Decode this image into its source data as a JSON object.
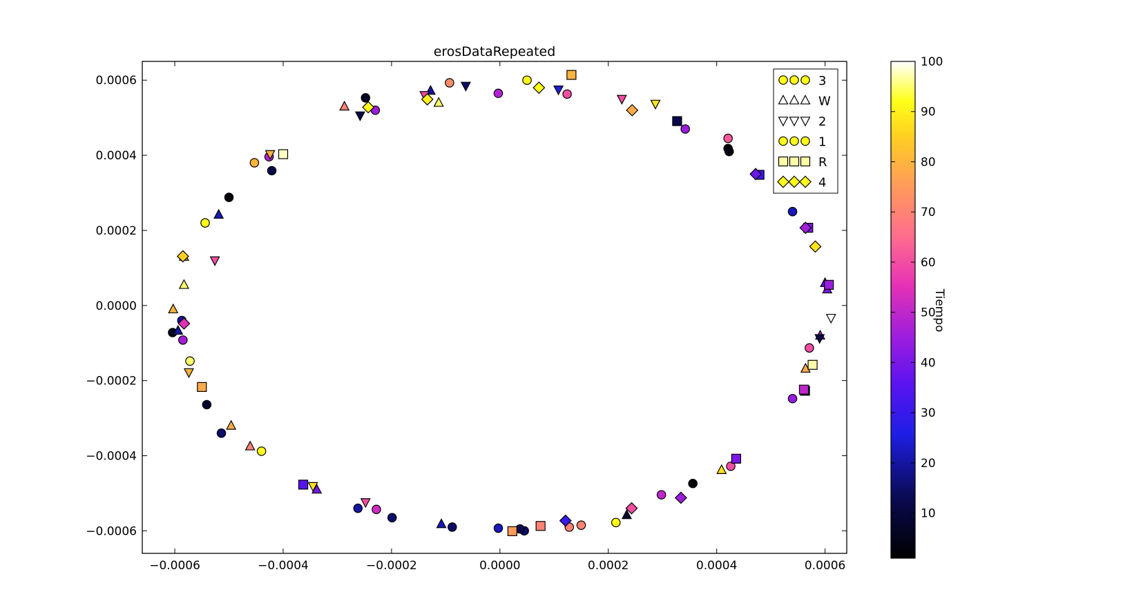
{
  "chart_data": {
    "type": "scatter",
    "title": "erosDataRepeated",
    "xlim": [
      -0.00066,
      0.00064
    ],
    "ylim": [
      -0.00066,
      0.00065
    ],
    "xticks": [
      -0.0006,
      -0.0004,
      -0.0002,
      0.0,
      0.0002,
      0.0004,
      0.0006
    ],
    "xtick_labels": [
      "−0.0006",
      "−0.0004",
      "−0.0002",
      "0.0000",
      "0.0002",
      "0.0004",
      "0.0006"
    ],
    "yticks": [
      -0.0006,
      -0.0004,
      -0.0002,
      0.0,
      0.0002,
      0.0004,
      0.0006
    ],
    "ytick_labels": [
      "−0.0006",
      "−0.0004",
      "−0.0002",
      "0.0000",
      "0.0002",
      "0.0004",
      "0.0006"
    ],
    "legend_position": "top-right",
    "colorbar": {
      "label": "Tiempo",
      "range": [
        1,
        100
      ],
      "ticks": [
        10,
        20,
        30,
        40,
        50,
        60,
        70,
        80,
        90,
        100
      ],
      "colormap": "gnuplot2"
    },
    "series": [
      {
        "name": "3",
        "marker": "circle",
        "points": [
          [
            -9.3e-05,
            0.000593,
            72
          ],
          [
            -3e-06,
            0.000565,
            48
          ],
          [
            0.000124,
            0.000563,
            60
          ],
          [
            0.000342,
            0.00047,
            45
          ],
          [
            0.000421,
            0.000418,
            2
          ],
          [
            0.000423,
            0.00041,
            3
          ],
          [
            0.00054,
            0.00025,
            22
          ],
          [
            0.000571,
            -0.000113,
            60
          ],
          [
            0.00054,
            -0.000248,
            44
          ],
          [
            0.000298,
            -0.000504,
            50
          ],
          [
            0.000356,
            -0.000474,
            2
          ],
          [
            0.00015,
            -0.000585,
            70
          ],
          [
            0.000128,
            -0.00059,
            70
          ],
          [
            4.5e-05,
            -0.0006,
            15
          ],
          [
            3.7e-05,
            -0.000595,
            13
          ],
          [
            -8.8e-05,
            -0.00059,
            15
          ],
          [
            -3e-06,
            -0.000593,
            22
          ],
          [
            -0.000199,
            -0.000565,
            15
          ],
          [
            -0.000228,
            -0.000543,
            52
          ],
          [
            -0.000262,
            -0.00054,
            20
          ],
          [
            -0.000514,
            -0.00034,
            15
          ],
          [
            -0.000541,
            -0.000264,
            8
          ],
          [
            -0.000585,
            -9.2e-05,
            46
          ],
          [
            -0.000604,
            -7.2e-05,
            5
          ],
          [
            -0.000587,
            -4e-05,
            20
          ],
          [
            -0.000421,
            0.000359,
            12
          ],
          [
            -0.000426,
            0.000396,
            48
          ],
          [
            -0.0005,
            0.000288,
            3
          ],
          [
            -0.000248,
            0.000553,
            6
          ],
          [
            -0.00023,
            0.00052,
            45
          ]
        ]
      },
      {
        "name": "W",
        "marker": "triangle-up",
        "points": [
          [
            -0.000287,
            0.00053,
            70
          ],
          [
            -0.000128,
            0.000572,
            20
          ],
          [
            -0.000113,
            0.00054,
            95
          ],
          [
            -0.000519,
            0.000242,
            22
          ],
          [
            -0.000583,
            0.00013,
            82
          ],
          [
            -0.000583,
            5.5e-05,
            95
          ],
          [
            -0.000603,
            -1e-05,
            80
          ],
          [
            -0.000594,
            -6.7e-05,
            20
          ],
          [
            -0.000496,
            -0.00032,
            78
          ],
          [
            -0.000461,
            -0.000375,
            70
          ],
          [
            -0.000338,
            -0.00049,
            40
          ],
          [
            -0.000108,
            -0.000582,
            22
          ],
          [
            0.000234,
            -0.000558,
            8
          ],
          [
            0.000409,
            -0.000438,
            88
          ],
          [
            0.0006,
            6e-05,
            35
          ],
          [
            0.000604,
            4.3e-05,
            40
          ],
          [
            0.000591,
            -8e-05,
            50
          ],
          [
            0.000564,
            -0.000168,
            78
          ]
        ]
      },
      {
        "name": "2",
        "marker": "triangle-down",
        "points": [
          [
            -0.000258,
            0.000506,
            12
          ],
          [
            -0.000139,
            0.00056,
            60
          ],
          [
            -6.3e-05,
            0.000585,
            15
          ],
          [
            0.000108,
            0.000575,
            25
          ],
          [
            0.000225,
            0.00055,
            60
          ],
          [
            0.000287,
            0.000537,
            88
          ],
          [
            -0.000424,
            0.000403,
            80
          ],
          [
            -0.000526,
            0.00012,
            60
          ],
          [
            -0.000574,
            -0.000178,
            80
          ],
          [
            -0.000345,
            -0.000481,
            88
          ],
          [
            -0.000248,
            -0.000524,
            60
          ],
          [
            0.000611,
            -3.3e-05,
            100
          ],
          [
            0.00059,
            -8.7e-05,
            12
          ]
        ]
      },
      {
        "name": "1",
        "marker": "circle",
        "points": [
          [
            5e-05,
            0.0006,
            92
          ],
          [
            0.000421,
            0.000445,
            62
          ],
          [
            -0.000453,
            0.00038,
            80
          ],
          [
            -0.000544,
            0.00022,
            92
          ],
          [
            -0.000572,
            -0.000148,
            95
          ],
          [
            -0.00044,
            -0.000388,
            92
          ],
          [
            0.000214,
            -0.000578,
            92
          ],
          [
            0.000426,
            -0.000428,
            60
          ]
        ]
      },
      {
        "name": "R",
        "marker": "square",
        "points": [
          [
            0.000132,
            0.000614,
            80
          ],
          [
            0.000327,
            0.000491,
            12
          ],
          [
            0.000479,
            0.000348,
            30
          ],
          [
            0.000569,
            0.000207,
            40
          ],
          [
            0.000607,
            5.5e-05,
            45
          ],
          [
            0.000577,
            -0.000158,
            97
          ],
          [
            0.000563,
            -0.000227,
            15
          ],
          [
            0.000561,
            -0.000224,
            50
          ],
          [
            0.000436,
            -0.000408,
            40
          ],
          [
            7.5e-05,
            -0.000587,
            70
          ],
          [
            2.3e-05,
            -0.000601,
            75
          ],
          [
            -0.000363,
            -0.000477,
            35
          ],
          [
            -0.00055,
            -0.000217,
            78
          ],
          [
            -0.0004,
            0.000403,
            98
          ]
        ]
      },
      {
        "name": "4",
        "marker": "diamond",
        "points": [
          [
            -0.000243,
            0.000528,
            92
          ],
          [
            -0.000134,
            0.000549,
            90
          ],
          [
            7.2e-05,
            0.00058,
            92
          ],
          [
            0.000244,
            0.00052,
            78
          ],
          [
            0.000472,
            0.00035,
            38
          ],
          [
            0.000564,
            0.000207,
            46
          ],
          [
            0.000582,
            0.000157,
            88
          ],
          [
            0.000334,
            -0.000512,
            45
          ],
          [
            0.000243,
            -0.00054,
            60
          ],
          [
            0.000121,
            -0.000573,
            30
          ],
          [
            -0.000583,
            -4.8e-05,
            55
          ],
          [
            -0.000585,
            0.000131,
            85
          ]
        ]
      }
    ]
  }
}
